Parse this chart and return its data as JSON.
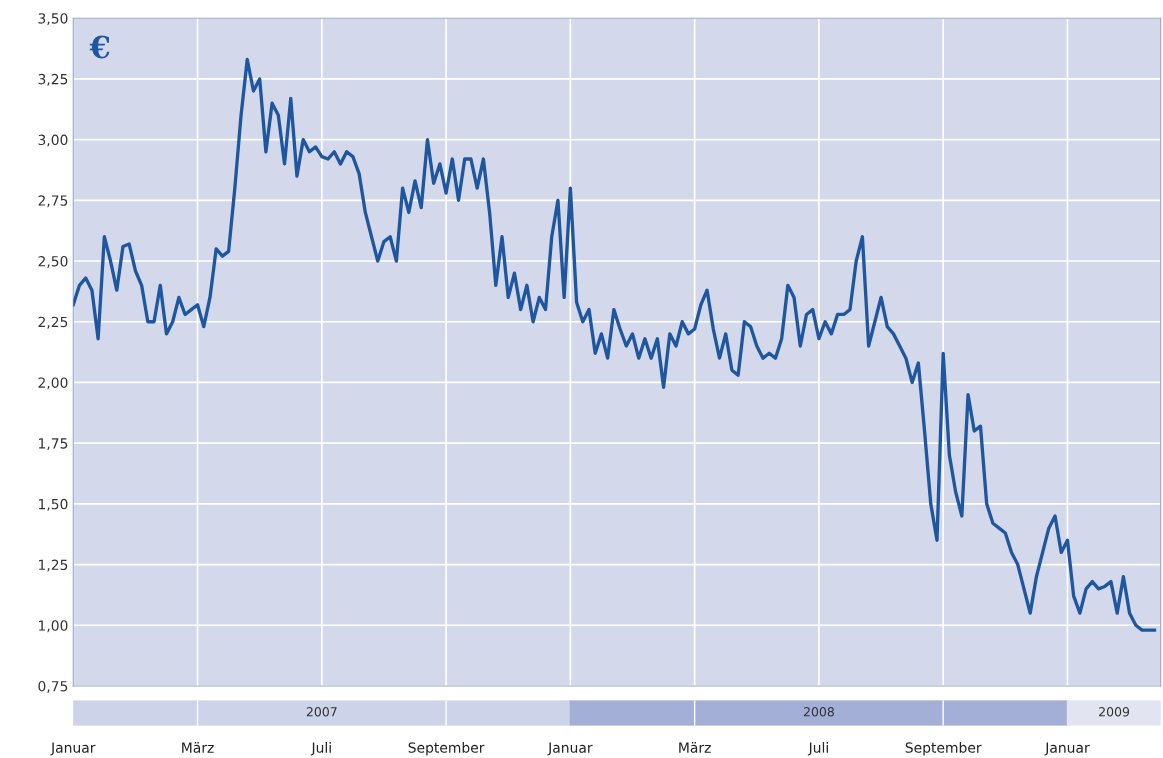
{
  "chart_data": {
    "type": "line",
    "categories": [
      "Januar",
      null,
      null,
      null,
      null,
      null,
      null,
      null,
      null,
      null,
      null,
      null,
      null,
      null,
      null,
      null,
      null,
      null,
      null,
      null,
      "März",
      null,
      null,
      null,
      null,
      null,
      null,
      null,
      null,
      null,
      null,
      null,
      null,
      null,
      null,
      null,
      null,
      null,
      null,
      null,
      "Juli",
      null,
      null,
      null,
      null,
      null,
      null,
      null,
      null,
      null,
      null,
      null,
      null,
      null,
      null,
      null,
      null,
      null,
      null,
      null,
      "September",
      null,
      null,
      null,
      null,
      null,
      null,
      null,
      null,
      null,
      null,
      null,
      null,
      null,
      null,
      null,
      null,
      null,
      null,
      null,
      "Januar",
      null,
      null,
      null,
      null,
      null,
      null,
      null,
      null,
      null,
      null,
      null,
      null,
      null,
      null,
      null,
      null,
      null,
      null,
      null,
      "März",
      null,
      null,
      null,
      null,
      null,
      null,
      null,
      null,
      null,
      null,
      null,
      null,
      null,
      null,
      null,
      null,
      null,
      null,
      null,
      "Juli",
      null,
      null,
      null,
      null,
      null,
      null,
      null,
      null,
      null,
      null,
      null,
      null,
      null,
      null,
      null,
      null,
      null,
      null,
      null,
      "September",
      null,
      null,
      null,
      null,
      null,
      null,
      null,
      null,
      null,
      null,
      null,
      null,
      null,
      null,
      null,
      null,
      null,
      null,
      null,
      "Januar",
      null,
      null,
      null,
      null,
      null,
      null,
      null,
      null,
      null,
      null,
      null,
      null,
      null,
      null
    ],
    "series": [
      {
        "color": "#1f56a0",
        "values": [
          2.32,
          2.4,
          2.43,
          2.38,
          2.18,
          2.6,
          2.5,
          2.38,
          2.56,
          2.57,
          2.46,
          2.4,
          2.25,
          2.25,
          2.4,
          2.2,
          2.25,
          2.35,
          2.28,
          2.3,
          2.32,
          2.23,
          2.35,
          2.55,
          2.52,
          2.54,
          2.8,
          3.1,
          3.33,
          3.2,
          3.25,
          2.95,
          3.15,
          3.1,
          2.9,
          3.17,
          2.85,
          3.0,
          2.95,
          2.97,
          2.93,
          2.92,
          2.95,
          2.9,
          2.95,
          2.93,
          2.86,
          2.7,
          2.6,
          2.5,
          2.58,
          2.6,
          2.5,
          2.8,
          2.7,
          2.83,
          2.72,
          3.0,
          2.82,
          2.9,
          2.78,
          2.92,
          2.75,
          2.92,
          2.92,
          2.8,
          2.92,
          2.7,
          2.4,
          2.6,
          2.35,
          2.45,
          2.3,
          2.4,
          2.25,
          2.35,
          2.3,
          2.6,
          2.75,
          2.35,
          2.8,
          2.33,
          2.25,
          2.3,
          2.12,
          2.2,
          2.1,
          2.3,
          2.22,
          2.15,
          2.2,
          2.1,
          2.18,
          2.1,
          2.18,
          1.98,
          2.2,
          2.15,
          2.25,
          2.2,
          2.22,
          2.32,
          2.38,
          2.22,
          2.1,
          2.2,
          2.05,
          2.03,
          2.25,
          2.23,
          2.15,
          2.1,
          2.12,
          2.1,
          2.18,
          2.4,
          2.35,
          2.15,
          2.28,
          2.3,
          2.18,
          2.25,
          2.2,
          2.28,
          2.28,
          2.3,
          2.5,
          2.6,
          2.15,
          2.25,
          2.35,
          2.23,
          2.2,
          2.15,
          2.1,
          2.0,
          2.08,
          1.8,
          1.5,
          1.35,
          2.12,
          1.7,
          1.55,
          1.45,
          1.95,
          1.8,
          1.82,
          1.5,
          1.42,
          1.4,
          1.38,
          1.3,
          1.25,
          1.15,
          1.05,
          1.2,
          1.3,
          1.4,
          1.45,
          1.3,
          1.35,
          1.12,
          1.05,
          1.15,
          1.18,
          1.15,
          1.16,
          1.18,
          1.05,
          1.2,
          1.05,
          1.0,
          0.98,
          0.98,
          0.98
        ]
      }
    ],
    "ylim": [
      0.75,
      3.5
    ],
    "yticks": [
      {
        "value": 0.75,
        "label": "0,75"
      },
      {
        "value": 1.0,
        "label": "1,00"
      },
      {
        "value": 1.25,
        "label": "1,25"
      },
      {
        "value": 1.5,
        "label": "1,50"
      },
      {
        "value": 1.75,
        "label": "1,75"
      },
      {
        "value": 2.0,
        "label": "2,00"
      },
      {
        "value": 2.25,
        "label": "2,25"
      },
      {
        "value": 2.5,
        "label": "2,50"
      },
      {
        "value": 2.75,
        "label": "2,75"
      },
      {
        "value": 3.0,
        "label": "3,00"
      },
      {
        "value": 3.25,
        "label": "3,25"
      },
      {
        "value": 3.5,
        "label": "3,50"
      }
    ],
    "grid": true,
    "marker": "none",
    "line_style": "solid",
    "annotations": [
      "€",
      "2007",
      "2008",
      "2009"
    ]
  }
}
